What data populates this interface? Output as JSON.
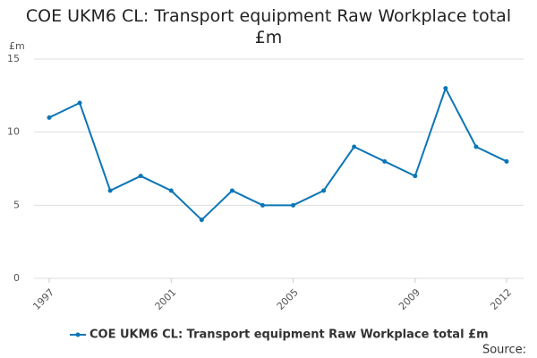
{
  "chart_data": {
    "type": "line",
    "title": "COE UKM6 CL: Transport equipment Raw Workplace total £m",
    "y_label": "£m",
    "x": [
      1997,
      1998,
      1999,
      2000,
      2001,
      2002,
      2003,
      2004,
      2005,
      2006,
      2007,
      2008,
      2009,
      2010,
      2011,
      2012
    ],
    "series": [
      {
        "name": "COE UKM6 CL: Transport equipment Raw Workplace total £m",
        "color": "#0b76b6",
        "values": [
          11,
          12,
          6,
          7,
          6,
          4,
          6,
          5,
          5,
          6,
          9,
          8,
          7,
          13,
          9,
          8
        ]
      }
    ],
    "xlim": [
      1997,
      2012
    ],
    "xticks": [
      1997,
      2001,
      2005,
      2009,
      2012
    ],
    "ylim": [
      0,
      15
    ],
    "yticks": [
      0,
      5,
      10,
      15
    ],
    "grid": true,
    "source": "Source:"
  }
}
